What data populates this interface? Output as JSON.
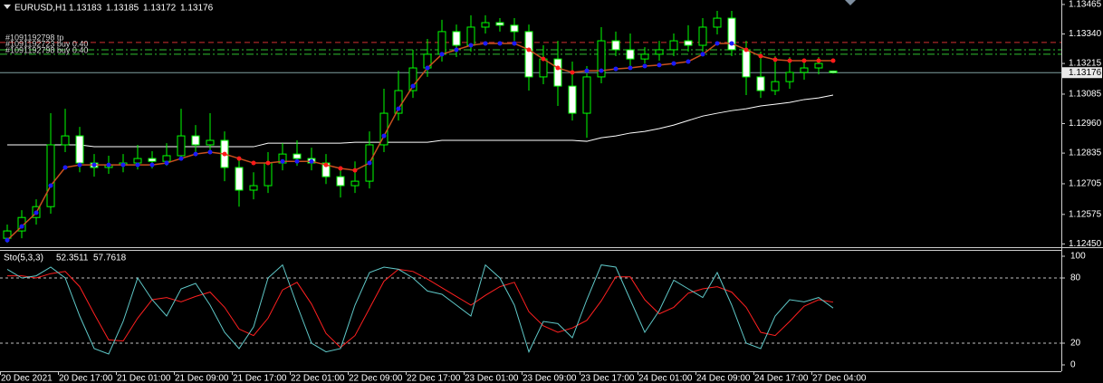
{
  "chart_data": [
    {
      "type": "candlestick",
      "symbol_label": "EURUSD,H1",
      "bull_color": "#000000",
      "bear_color": "#ffffff",
      "outline_color": "#00ff00",
      "ylim": [
        1.1244,
        1.13484
      ],
      "yticks": [
        1.13465,
        {
          "value": 1.1334,
          "label": "1.13340"
        },
        1.13215,
        1.13085,
        {
          "value": 1.1296,
          "label": "1.12960"
        },
        1.12835,
        1.12705,
        1.12575,
        {
          "value": 1.1245,
          "label": "1.12450"
        }
      ],
      "candles": [
        [
          1.12474,
          1.12532,
          1.12455,
          1.12505
        ],
        [
          1.12505,
          1.12593,
          1.12474,
          1.12562
        ],
        [
          1.12562,
          1.12639,
          1.12532,
          1.12608
        ],
        [
          1.12608,
          1.13004,
          1.12578,
          1.1287
        ],
        [
          1.1287,
          1.13023,
          1.12839,
          1.12908
        ],
        [
          1.12908,
          1.12946,
          1.12754,
          1.12793
        ],
        [
          1.12793,
          1.12831,
          1.12735,
          1.12774
        ],
        [
          1.12774,
          1.12824,
          1.12747,
          1.12785
        ],
        [
          1.12785,
          1.12831,
          1.12754,
          1.12793
        ],
        [
          1.12793,
          1.1287,
          1.12766,
          1.12812
        ],
        [
          1.12812,
          1.12843,
          1.1277,
          1.128
        ],
        [
          1.128,
          1.12877,
          1.12781,
          1.12824
        ],
        [
          1.12824,
          1.13023,
          1.12804,
          1.12908
        ],
        [
          1.12908,
          1.12954,
          1.12839,
          1.1287
        ],
        [
          1.1287,
          1.13004,
          1.12831,
          1.12889
        ],
        [
          1.12889,
          1.12927,
          1.12716,
          1.12774
        ],
        [
          1.12774,
          1.12812,
          1.12608,
          1.12678
        ],
        [
          1.12678,
          1.12754,
          1.12639,
          1.12697
        ],
        [
          1.12697,
          1.12839,
          1.12666,
          1.12793
        ],
        [
          1.12793,
          1.12877,
          1.12762,
          1.12831
        ],
        [
          1.12831,
          1.12889,
          1.12781,
          1.12812
        ],
        [
          1.12812,
          1.12858,
          1.12762,
          1.12793
        ],
        [
          1.12793,
          1.12831,
          1.12704,
          1.12735
        ],
        [
          1.12735,
          1.12766,
          1.12647,
          1.12697
        ],
        [
          1.12697,
          1.128,
          1.12666,
          1.12716
        ],
        [
          1.12716,
          1.12927,
          1.12685,
          1.1287
        ],
        [
          1.1287,
          1.13108,
          1.12839,
          1.13004
        ],
        [
          1.13004,
          1.13184,
          1.12973,
          1.131
        ],
        [
          1.131,
          1.13273,
          1.13069,
          1.13196
        ],
        [
          1.13196,
          1.13319,
          1.13158,
          1.13254
        ],
        [
          1.13254,
          1.134,
          1.13223,
          1.1335
        ],
        [
          1.1335,
          1.1338,
          1.13242,
          1.13292
        ],
        [
          1.13292,
          1.13419,
          1.13265,
          1.13369
        ],
        [
          1.13369,
          1.13419,
          1.13342,
          1.13388
        ],
        [
          1.13388,
          1.13407,
          1.1335,
          1.13377
        ],
        [
          1.13377,
          1.13407,
          1.13311,
          1.1335
        ],
        [
          1.1335,
          1.1338,
          1.131,
          1.13158
        ],
        [
          1.13158,
          1.13292,
          1.13127,
          1.13234
        ],
        [
          1.13234,
          1.13311,
          1.13035,
          1.13119
        ],
        [
          1.13119,
          1.13223,
          1.12973,
          1.13004
        ],
        [
          1.13004,
          1.13204,
          1.129,
          1.13158
        ],
        [
          1.13158,
          1.13369,
          1.13131,
          1.13311
        ],
        [
          1.13311,
          1.1335,
          1.13246,
          1.13273
        ],
        [
          1.13273,
          1.13342,
          1.13204,
          1.13234
        ],
        [
          1.13234,
          1.13284,
          1.13215,
          1.13254
        ],
        [
          1.13254,
          1.13311,
          1.13227,
          1.13273
        ],
        [
          1.13273,
          1.13342,
          1.13246,
          1.13311
        ],
        [
          1.13311,
          1.13377,
          1.13265,
          1.13292
        ],
        [
          1.13292,
          1.13407,
          1.13265,
          1.13369
        ],
        [
          1.13369,
          1.13438,
          1.13338,
          1.13407
        ],
        [
          1.13407,
          1.13438,
          1.13246,
          1.13273
        ],
        [
          1.13273,
          1.13311,
          1.13081,
          1.13158
        ],
        [
          1.13158,
          1.13265,
          1.13069,
          1.131
        ],
        [
          1.131,
          1.13246,
          1.13081,
          1.13138
        ],
        [
          1.13138,
          1.13242,
          1.13108,
          1.13177
        ],
        [
          1.13177,
          1.13234,
          1.13146,
          1.13196
        ],
        [
          1.13196,
          1.13242,
          1.13169,
          1.13215
        ],
        [
          1.13183,
          1.13185,
          1.13172,
          1.13176
        ]
      ],
      "ma": {
        "color": "#ffffff",
        "values": [
          1.1287,
          1.1287,
          1.1287,
          1.1287,
          1.1287,
          1.1287,
          1.12862,
          1.12862,
          1.12862,
          1.12862,
          1.12862,
          1.12862,
          1.12862,
          1.12862,
          1.12862,
          1.12862,
          1.12862,
          1.12862,
          1.12877,
          1.12877,
          1.12877,
          1.12877,
          1.12877,
          1.12877,
          1.12881,
          1.12881,
          1.12881,
          1.12881,
          1.12881,
          1.12881,
          1.12889,
          1.12889,
          1.12889,
          1.12889,
          1.12889,
          1.12889,
          1.12889,
          1.12889,
          1.12889,
          1.12889,
          1.12885,
          1.129,
          1.12908,
          1.1292,
          1.12927,
          1.12939,
          1.12954,
          1.12973,
          1.12992,
          1.13004,
          1.13015,
          1.13023,
          1.13035,
          1.13042,
          1.1305,
          1.13062,
          1.13069,
          1.13081
        ]
      },
      "trend": {
        "line_color": "#c8501e",
        "up_color": "#1a1aff",
        "down_color": "#ff1a1a",
        "values": [
          1.12466,
          1.12524,
          1.12582,
          1.12697,
          1.12774,
          1.12785,
          1.12785,
          1.12785,
          1.12785,
          1.12785,
          1.12785,
          1.12793,
          1.12812,
          1.12831,
          1.12839,
          1.12831,
          1.12812,
          1.12793,
          1.12793,
          1.128,
          1.128,
          1.128,
          1.12785,
          1.1277,
          1.12762,
          1.12793,
          1.12908,
          1.13023,
          1.13119,
          1.13196,
          1.13254,
          1.13273,
          1.13292,
          1.133,
          1.133,
          1.133,
          1.13273,
          1.13234,
          1.13196,
          1.13177,
          1.13184,
          1.13184,
          1.13192,
          1.13196,
          1.13204,
          1.13208,
          1.13215,
          1.13223,
          1.13254,
          1.133,
          1.133,
          1.13273,
          1.13246,
          1.13231,
          1.13227,
          1.13227,
          1.13227,
          1.13227
        ]
      },
      "orders": [
        {
          "label": "#1091192798 tp",
          "price": 1.13304,
          "color": "#d03030",
          "dash": "6,4"
        },
        {
          "label": "#1091192723 buy 0.40",
          "price": 1.13273,
          "color": "#30c030",
          "dash": "8,3,2,3"
        },
        {
          "label": "#1091192798 buy 0.40",
          "price": 1.13254,
          "color": "#30c030",
          "dash": "8,3,2,3"
        }
      ],
      "current_line_color": "#7fa0a0",
      "xlabels": [
        "20 Dec 2021",
        "20 Dec 17:00",
        "21 Dec 01:00",
        "21 Dec 09:00",
        "21 Dec 17:00",
        "22 Dec 01:00",
        "22 Dec 09:00",
        "22 Dec 17:00",
        "23 Dec 01:00",
        "23 Dec 09:00",
        "23 Dec 17:00",
        "24 Dec 01:00",
        "24 Dec 09:00",
        "24 Dec 17:00",
        "27 Dec 04:00"
      ]
    },
    {
      "type": "stochastic",
      "label": "Sto(5,3,3)",
      "ylim": [
        0,
        100
      ],
      "yticks": [
        100,
        80,
        20,
        0
      ],
      "levels": [
        80,
        20
      ],
      "main": {
        "color": "#5fc8c8",
        "values": [
          88,
          80,
          82,
          90,
          80,
          45,
          15,
          10,
          40,
          80,
          60,
          45,
          70,
          75,
          55,
          30,
          15,
          35,
          80,
          92,
          55,
          20,
          12,
          15,
          55,
          85,
          90,
          88,
          80,
          68,
          65,
          55,
          45,
          92,
          80,
          55,
          12,
          40,
          38,
          25,
          60,
          92,
          90,
          60,
          30,
          50,
          78,
          70,
          62,
          85,
          55,
          20,
          15,
          45,
          60,
          58,
          62,
          52.3511
        ]
      },
      "signal": {
        "color": "#ff2020",
        "values": [
          82,
          82,
          80,
          84,
          86,
          72,
          47,
          23,
          22,
          43,
          60,
          62,
          58,
          63,
          67,
          53,
          33,
          27,
          43,
          69,
          76,
          56,
          29,
          16,
          27,
          52,
          77,
          88,
          86,
          79,
          71,
          63,
          55,
          64,
          72,
          76,
          49,
          36,
          30,
          34,
          41,
          59,
          81,
          81,
          60,
          47,
          53,
          66,
          70,
          72,
          67,
          53,
          30,
          27,
          40,
          54,
          60,
          57.7618
        ]
      }
    }
  ]
}
